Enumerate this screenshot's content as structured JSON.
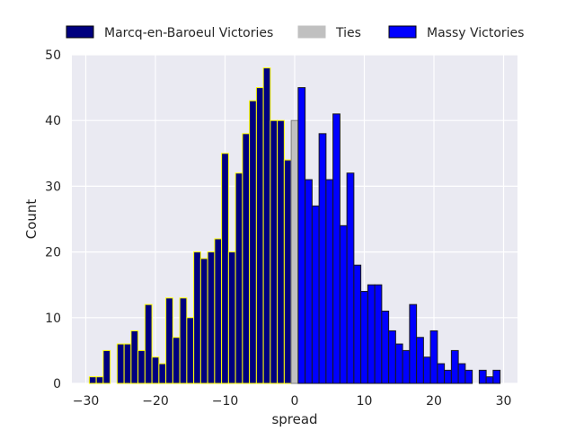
{
  "chart_data": {
    "type": "bar",
    "xlabel": "spread",
    "ylabel": "Count",
    "xlim": [
      -32,
      32
    ],
    "ylim": [
      0,
      50
    ],
    "xticks": [
      -30,
      -20,
      -10,
      0,
      10,
      20,
      30
    ],
    "xtick_labels": [
      "−30",
      "−20",
      "−10",
      "0",
      "10",
      "20",
      "30"
    ],
    "yticks": [
      0,
      10,
      20,
      30,
      40,
      50
    ],
    "ytick_labels": [
      "0",
      "10",
      "20",
      "30",
      "40",
      "50"
    ],
    "grid": true,
    "legend_position": "top, above plot",
    "series": [
      {
        "name": "Marcq-en-Baroeul Victories",
        "color": "#00007f",
        "edge_color": "#ffff00",
        "x": [
          -29,
          -28,
          -27,
          -26,
          -25,
          -24,
          -23,
          -22,
          -21,
          -20,
          -19,
          -18,
          -17,
          -16,
          -15,
          -14,
          -13,
          -12,
          -11,
          -10,
          -9,
          -8,
          -7,
          -6,
          -5,
          -4,
          -3,
          -2,
          -1
        ],
        "values": [
          1,
          1,
          5,
          0,
          6,
          6,
          8,
          5,
          12,
          4,
          3,
          13,
          7,
          13,
          10,
          20,
          19,
          20,
          22,
          35,
          20,
          32,
          38,
          43,
          45,
          48,
          40,
          40,
          34
        ]
      },
      {
        "name": "Ties",
        "color": "#c0c0c0",
        "edge_color": "#7f7f7f",
        "x": [
          0
        ],
        "values": [
          40
        ]
      },
      {
        "name": "Massy Victories",
        "color": "#0000ff",
        "edge_color": "#1a1a1a",
        "x": [
          1,
          2,
          3,
          4,
          5,
          6,
          7,
          8,
          9,
          10,
          11,
          12,
          13,
          14,
          15,
          16,
          17,
          18,
          19,
          20,
          21,
          22,
          23,
          24,
          25,
          26,
          27,
          28,
          29
        ],
        "values": [
          45,
          31,
          27,
          38,
          31,
          41,
          24,
          32,
          18,
          14,
          15,
          15,
          11,
          8,
          6,
          5,
          12,
          7,
          4,
          8,
          3,
          2,
          5,
          3,
          2,
          0,
          2,
          1,
          2
        ]
      }
    ]
  }
}
